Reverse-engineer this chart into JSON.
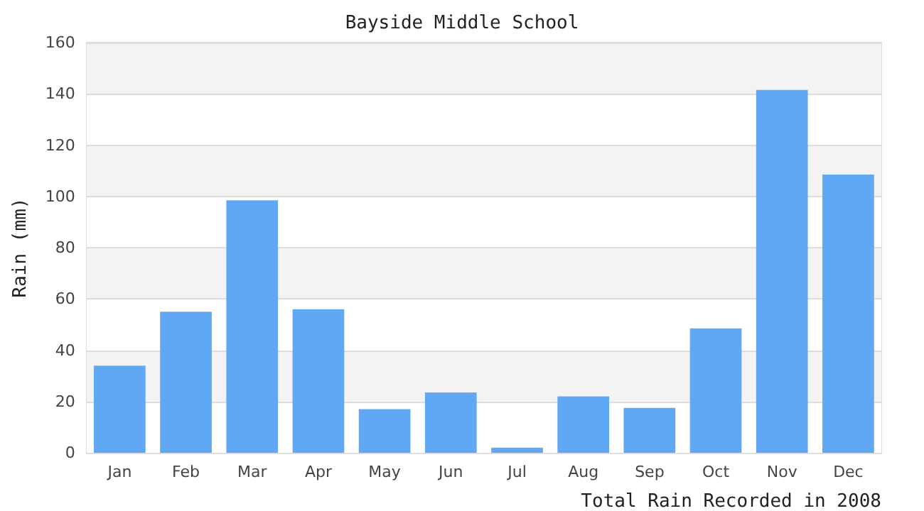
{
  "chart_data": {
    "type": "bar",
    "title": "Bayside Middle School",
    "xlabel": "Total Rain Recorded in 2008",
    "ylabel": "Rain (mm)",
    "categories": [
      "Jan",
      "Feb",
      "Mar",
      "Apr",
      "May",
      "Jun",
      "Jul",
      "Aug",
      "Sep",
      "Oct",
      "Nov",
      "Dec"
    ],
    "values": [
      34,
      55,
      98.5,
      56,
      17,
      23.5,
      2,
      22,
      17.5,
      48.5,
      141.5,
      108.5
    ],
    "color": "#60a8f4",
    "ylim": [
      0,
      160
    ],
    "yticks": [
      0,
      20,
      40,
      60,
      80,
      100,
      120,
      140,
      160
    ],
    "grid": true
  }
}
